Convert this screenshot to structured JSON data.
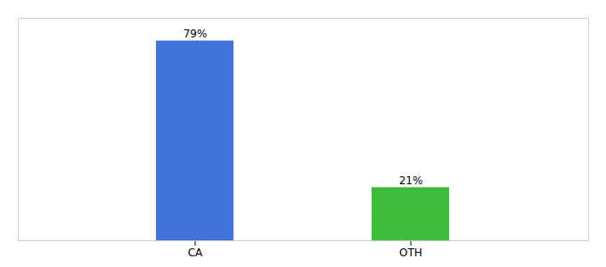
{
  "chart_data": {
    "type": "bar",
    "categories": [
      "CA",
      "OTH"
    ],
    "values": [
      79,
      21
    ],
    "colors": [
      "#4472db",
      "#3dbb3d"
    ],
    "value_labels": [
      "79%",
      "21%"
    ],
    "data_labels": true,
    "ylim": [
      0,
      88
    ],
    "tick_labels": "x"
  }
}
